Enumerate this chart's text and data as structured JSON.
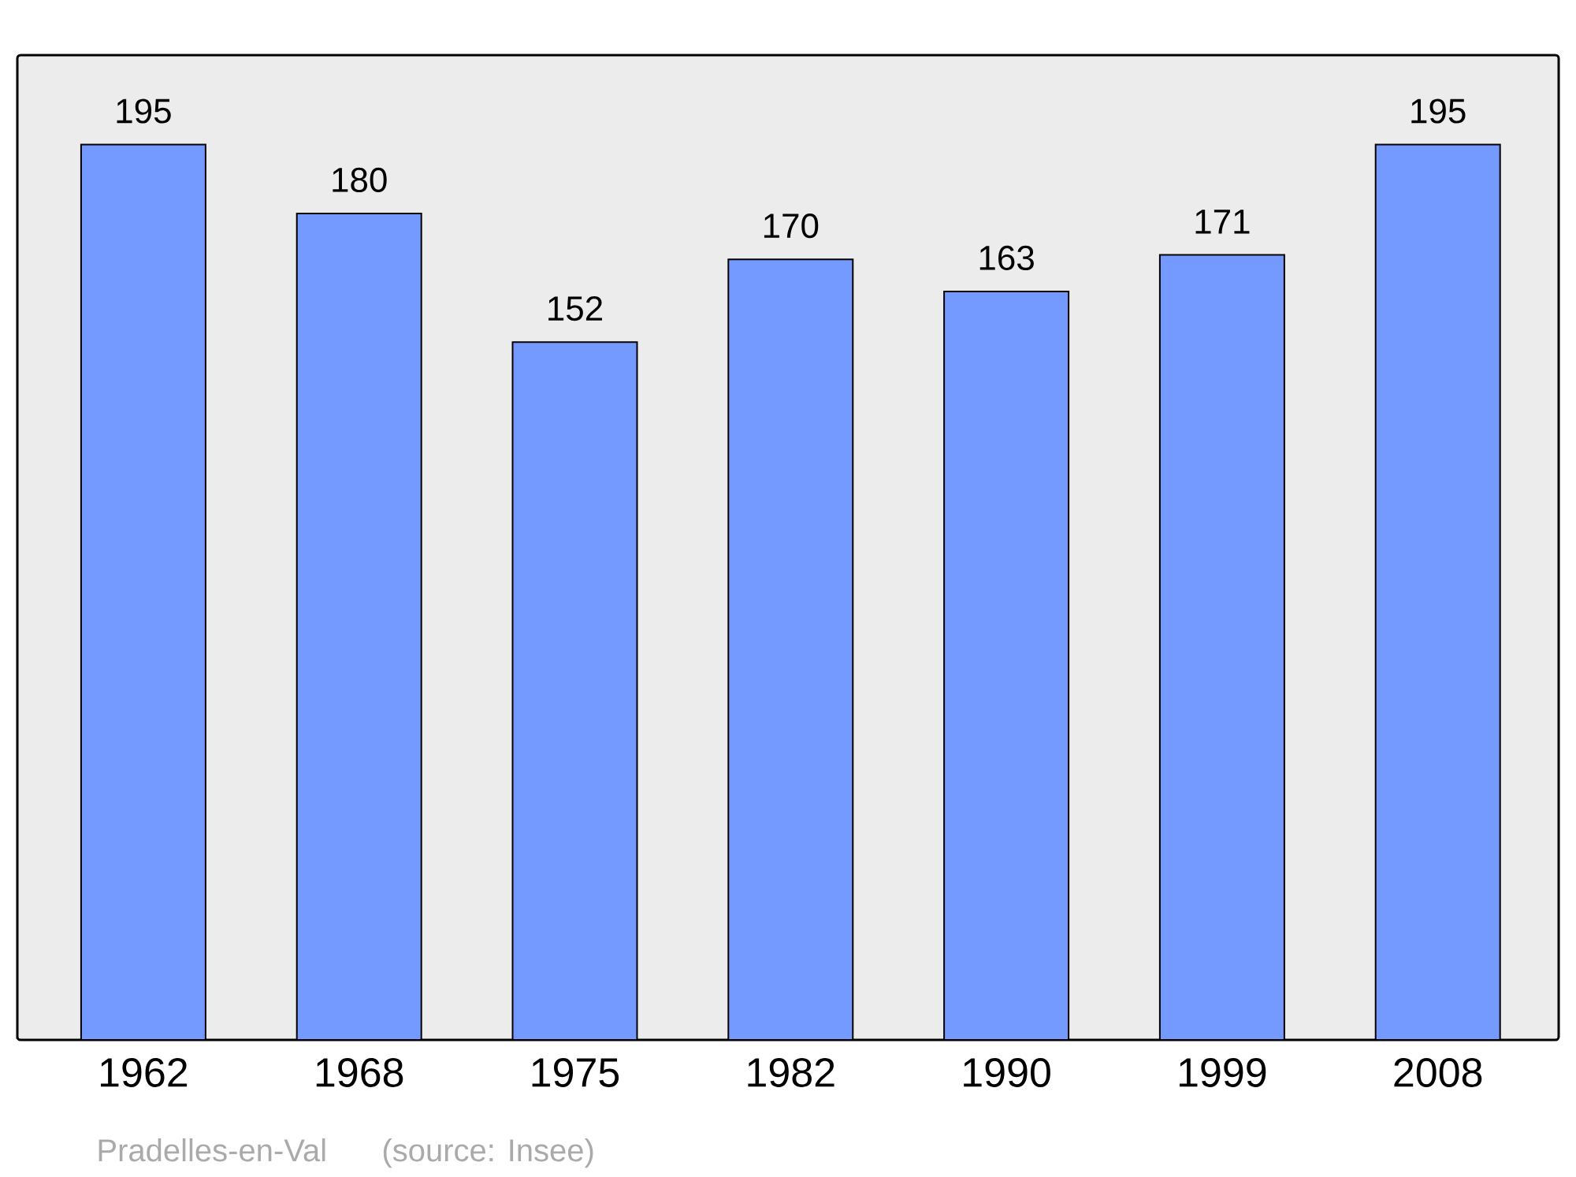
{
  "chart_data": {
    "type": "bar",
    "categories": [
      "1962",
      "1968",
      "1975",
      "1982",
      "1990",
      "1999",
      "2008"
    ],
    "values": [
      195,
      180,
      152,
      170,
      163,
      171,
      195
    ],
    "color": "#7499ff",
    "data_labels": true,
    "annotations": [
      "Pradelles-en-Val",
      "(source: Insee)"
    ]
  }
}
